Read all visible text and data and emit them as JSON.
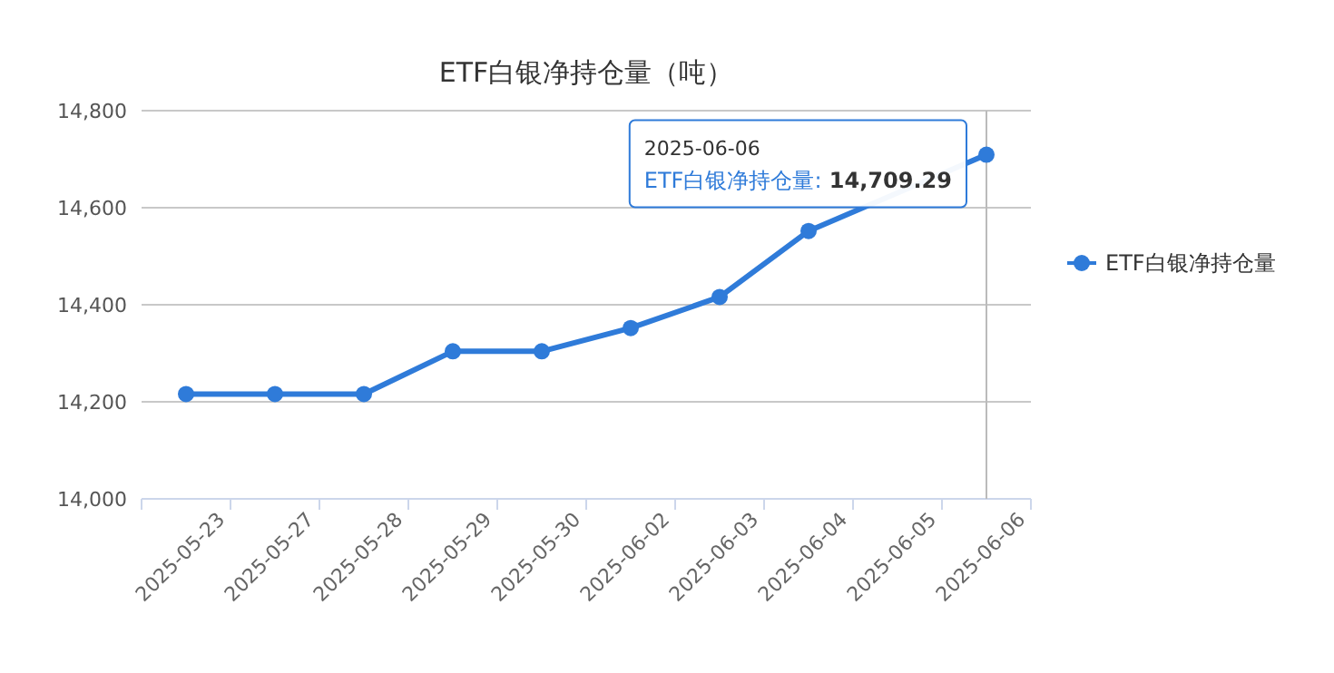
{
  "chart_data": {
    "type": "line",
    "title": "ETF白银净持仓量（吨）",
    "categories": [
      "2025-05-23",
      "2025-05-27",
      "2025-05-28",
      "2025-05-29",
      "2025-05-30",
      "2025-06-02",
      "2025-06-03",
      "2025-06-04",
      "2025-06-05",
      "2025-06-06"
    ],
    "series": [
      {
        "name": "ETF白银净持仓量",
        "color": "#2f7bd9",
        "values": [
          14216,
          14216,
          14216,
          14304,
          14304,
          14352,
          14416,
          14552,
          null,
          14709.29
        ]
      }
    ],
    "ylim": [
      14000,
      14800
    ],
    "yticks": [
      {
        "value": 14000,
        "label": "14,000"
      },
      {
        "value": 14200,
        "label": "14,200"
      },
      {
        "value": 14400,
        "label": "14,400"
      },
      {
        "value": 14600,
        "label": "14,600"
      },
      {
        "value": 14800,
        "label": "14,800"
      }
    ],
    "grid": "y",
    "legend": "right",
    "marker": "circle",
    "line_style": "solid",
    "ref_lines": [
      {
        "axis": "x",
        "value": "2025-06-06",
        "color": "#bbbbbb"
      }
    ],
    "annotations": [
      {
        "text": "2025-06-06\nETF白银净持仓量: 14,709.29",
        "x": "2025-06-06",
        "y": 14709.29
      }
    ]
  }
}
